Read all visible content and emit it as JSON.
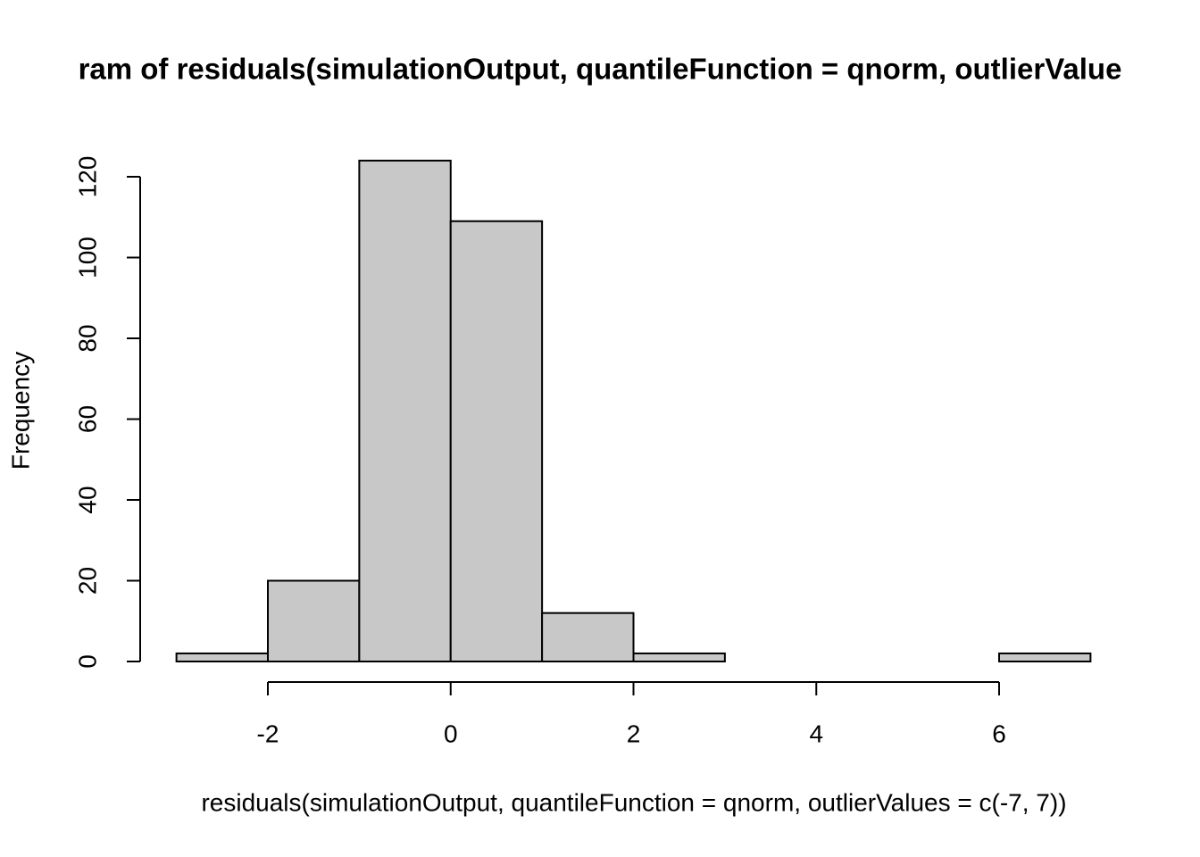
{
  "chart_data": {
    "type": "histogram",
    "title": "ram of residuals(simulationOutput, quantileFunction = qnorm, outlierValue",
    "x_label": "residuals(simulationOutput, quantileFunction = qnorm, outlierValues = c(-7, 7))",
    "y_label": "Frequency",
    "bins": [
      -3,
      -2,
      -1,
      0,
      1,
      2,
      3,
      4,
      5,
      6,
      7
    ],
    "values": [
      2,
      20,
      124,
      109,
      12,
      2,
      0,
      0,
      0,
      2
    ],
    "color": "#c8c8c8",
    "xlim": [
      -2,
      6
    ],
    "xticks": [
      -2,
      0,
      2,
      4,
      6
    ],
    "ylim": [
      0,
      120
    ],
    "yticks": [
      0,
      20,
      40,
      60,
      80,
      100,
      120
    ]
  }
}
